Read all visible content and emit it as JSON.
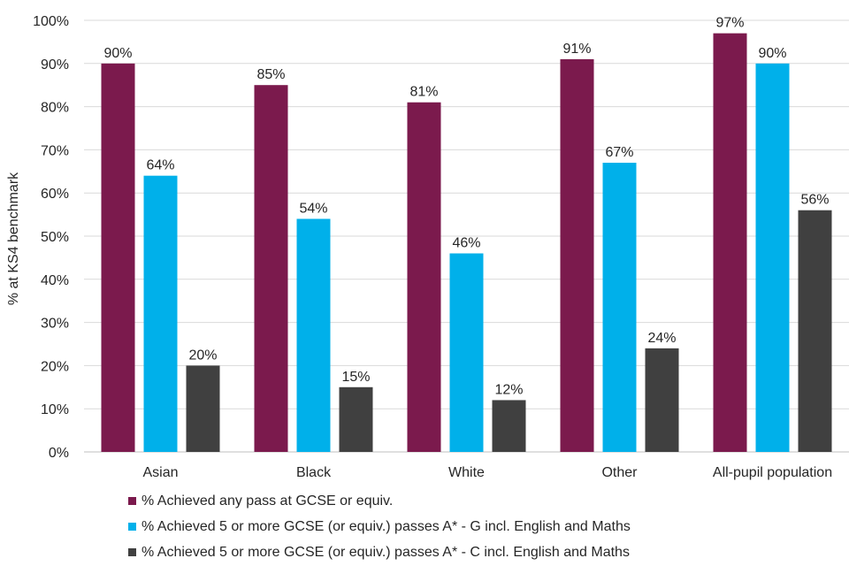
{
  "chart_data": {
    "type": "bar",
    "categories": [
      "Asian",
      "Black",
      "White",
      "Other",
      "All-pupil population"
    ],
    "series": [
      {
        "name": "% Achieved any pass at GCSE or equiv.",
        "color": "#7b1a4d",
        "values": [
          90,
          85,
          81,
          91,
          97
        ],
        "labels": [
          "90%",
          "85%",
          "81%",
          "91%",
          "97%"
        ]
      },
      {
        "name": "% Achieved 5 or more GCSE (or equiv.) passes A* - G incl. English and Maths",
        "color": "#00b0ea",
        "values": [
          64,
          54,
          46,
          67,
          90
        ],
        "labels": [
          "64%",
          "54%",
          "46%",
          "67%",
          "90%"
        ]
      },
      {
        "name": "% Achieved 5 or more GCSE (or equiv.) passes A* - C incl. English and Maths",
        "color": "#404040",
        "values": [
          20,
          15,
          12,
          24,
          56
        ],
        "labels": [
          "20%",
          "15%",
          "12%",
          "24%",
          "56%"
        ]
      }
    ],
    "ylabel": "% at KS4 benchmark",
    "ylim": [
      0,
      100
    ],
    "yticks": [
      "0%",
      "10%",
      "20%",
      "30%",
      "40%",
      "50%",
      "60%",
      "70%",
      "80%",
      "90%",
      "100%"
    ],
    "legend_position": "bottom"
  }
}
